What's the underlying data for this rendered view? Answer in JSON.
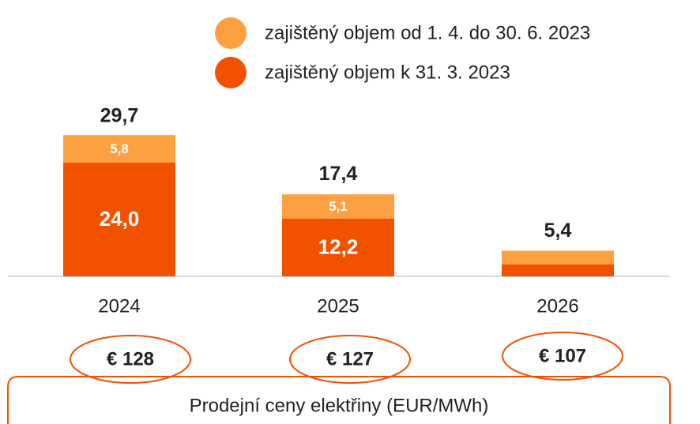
{
  "chart_data": {
    "type": "stacked_bar",
    "categories": [
      "2024",
      "2025",
      "2026"
    ],
    "series": [
      {
        "name": "zajištěný objem k 31. 3. 2023",
        "color": "#f25100",
        "values": [
          24.0,
          12.2,
          2.5
        ],
        "value_labels": [
          "24,0",
          "12,2",
          null
        ]
      },
      {
        "name": "zajištěný objem od 1. 4. do 30. 6. 2023",
        "color": "#fda041",
        "values": [
          5.8,
          5.1,
          2.9
        ],
        "value_labels": [
          "5,8",
          "5,1",
          null
        ]
      }
    ],
    "totals": [
      29.7,
      17.4,
      5.4
    ],
    "total_labels": [
      "29,7",
      "17,4",
      "5,4"
    ],
    "ylim": [
      0,
      30
    ],
    "prices": [
      "€ 128",
      "€ 127",
      "€ 107"
    ],
    "price_caption": "Prodejní ceny elektřiny (EUR/MWh)"
  }
}
